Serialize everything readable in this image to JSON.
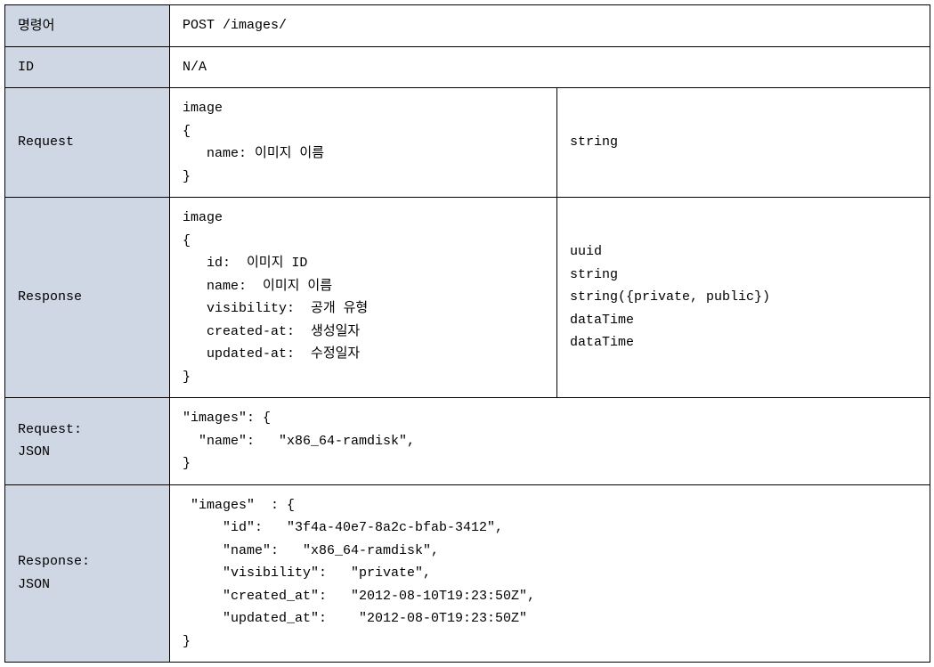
{
  "colors": {
    "label_bg": "#cfd7e5",
    "border": "#000000",
    "text": "#000000",
    "page_bg": "#ffffff"
  },
  "rows": {
    "command": {
      "label": "명령어",
      "value": "POST /images/"
    },
    "id": {
      "label": "ID",
      "value": "N/A"
    },
    "request": {
      "label": "Request",
      "schema_lines": [
        "image",
        "{",
        "   name: 이미지 이름",
        "}"
      ],
      "types_lines": [
        "string"
      ]
    },
    "response": {
      "label": "Response",
      "schema_lines": [
        "image",
        "{",
        "   id:  이미지 ID",
        "   name:  이미지 이름",
        "   visibility:  공개 유형",
        "   created-at:  생성일자",
        "   updated-at:  수정일자",
        "}"
      ],
      "types_lines": [
        "uuid",
        "string",
        "string({private, public})",
        "dataTime",
        "dataTime"
      ]
    },
    "request_json": {
      "label": "Request:\nJSON",
      "body_lines": [
        "\"images\": {",
        "  \"name\":   \"x86_64-ramdisk\",",
        "}"
      ]
    },
    "response_json": {
      "label": "Response:\nJSON",
      "body_lines": [
        " \"images\"  : {",
        "     \"id\":   \"3f4a-40e7-8a2c-bfab-3412\",",
        "     \"name\":   \"x86_64-ramdisk\",",
        "     \"visibility\":   \"private\",",
        "     \"created_at\":   \"2012-08-10T19:23:50Z\",",
        "     \"updated_at\":    \"2012-08-0T19:23:50Z\"",
        "}"
      ]
    }
  }
}
